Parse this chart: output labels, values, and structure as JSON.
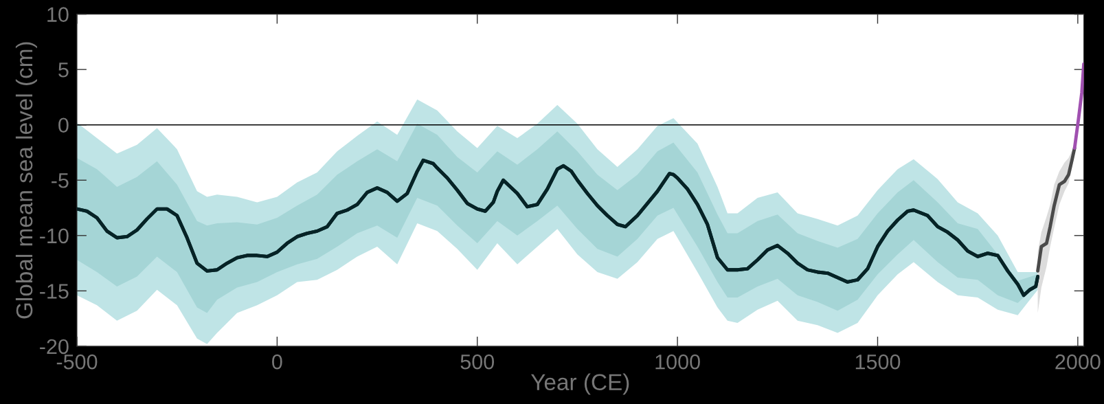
{
  "chart_data": {
    "type": "line",
    "xlabel": "Year (CE)",
    "ylabel": "Global mean sea level (cm)",
    "xlim": [
      -500,
      2015
    ],
    "ylim": [
      -20,
      10
    ],
    "xticks": [
      -500,
      0,
      500,
      1000,
      1500,
      2000
    ],
    "yticks": [
      -20,
      -15,
      -10,
      -5,
      0,
      5,
      10
    ],
    "grid": false,
    "legend": false,
    "ref_lines": [
      {
        "axis": "y",
        "value": 0,
        "color": "#000000",
        "line_style": "solid"
      }
    ],
    "series": [
      {
        "type": "line",
        "color": "#062326",
        "x": [
          -500,
          -475,
          -450,
          -425,
          -400,
          -375,
          -350,
          -325,
          -300,
          -275,
          -250,
          -225,
          -200,
          -175,
          -150,
          -125,
          -100,
          -75,
          -50,
          -25,
          0,
          25,
          50,
          75,
          100,
          125,
          150,
          175,
          200,
          225,
          250,
          275,
          300,
          325,
          350,
          365,
          390,
          400,
          425,
          450,
          475,
          500,
          520,
          540,
          550,
          565,
          600,
          625,
          650,
          675,
          700,
          715,
          735,
          750,
          775,
          800,
          825,
          850,
          870,
          900,
          950,
          980,
          990,
          1000,
          1025,
          1050,
          1075,
          1100,
          1125,
          1150,
          1175,
          1200,
          1225,
          1250,
          1275,
          1300,
          1325,
          1350,
          1375,
          1400,
          1425,
          1450,
          1475,
          1500,
          1525,
          1550,
          1575,
          1590,
          1625,
          1650,
          1675,
          1700,
          1725,
          1750,
          1775,
          1800,
          1825,
          1850,
          1865,
          1880,
          1895,
          1900
        ],
        "values": [
          -7.6,
          -7.8,
          -8.4,
          -9.6,
          -10.2,
          -10.1,
          -9.5,
          -8.5,
          -7.6,
          -7.6,
          -8.2,
          -10.2,
          -12.5,
          -13.2,
          -13.1,
          -12.5,
          -12.0,
          -11.8,
          -11.8,
          -11.9,
          -11.5,
          -10.7,
          -10.1,
          -9.8,
          -9.6,
          -9.2,
          -8.0,
          -7.7,
          -7.2,
          -6.1,
          -5.7,
          -6.1,
          -6.9,
          -6.2,
          -4.2,
          -3.2,
          -3.5,
          -3.9,
          -4.8,
          -5.9,
          -7.1,
          -7.6,
          -7.8,
          -7.0,
          -6.0,
          -5.0,
          -6.2,
          -7.4,
          -7.2,
          -5.8,
          -4.0,
          -3.7,
          -4.2,
          -5.0,
          -6.2,
          -7.3,
          -8.2,
          -9.0,
          -9.2,
          -8.2,
          -6.0,
          -4.4,
          -4.5,
          -4.8,
          -5.8,
          -7.2,
          -9.0,
          -12.0,
          -13.1,
          -13.1,
          -13.0,
          -12.2,
          -11.3,
          -10.9,
          -11.6,
          -12.5,
          -13.1,
          -13.3,
          -13.4,
          -13.8,
          -14.2,
          -14.0,
          -13.0,
          -11.0,
          -9.6,
          -8.6,
          -7.8,
          -7.7,
          -8.2,
          -9.2,
          -9.7,
          -10.4,
          -11.4,
          -11.9,
          -11.6,
          -11.8,
          -13.2,
          -14.4,
          -15.4,
          -14.9,
          -14.6,
          -13.7
        ],
        "upper": [
          0.2,
          null,
          -1.2,
          null,
          -2.6,
          null,
          -1.8,
          null,
          -0.3,
          null,
          -2.2,
          null,
          -6.0,
          -6.5,
          -6.3,
          null,
          -6.5,
          null,
          -7.0,
          null,
          -6.5,
          null,
          -5.2,
          null,
          -4.3,
          null,
          -2.4,
          null,
          -1.0,
          null,
          0.3,
          null,
          -0.9,
          null,
          2.3,
          null,
          null,
          1.3,
          null,
          -0.6,
          null,
          -2.1,
          null,
          null,
          -0.1,
          null,
          -1.2,
          null,
          0.1,
          null,
          1.8,
          null,
          null,
          0.1,
          null,
          -2.2,
          null,
          -3.8,
          null,
          -2.2,
          -0.1,
          null,
          0.6,
          null,
          null,
          -1.7,
          null,
          -5.6,
          -8.0,
          -8.0,
          null,
          -6.6,
          null,
          -6.1,
          null,
          -8.0,
          null,
          -8.5,
          null,
          -9.1,
          null,
          -8.2,
          null,
          -5.9,
          null,
          -4.0,
          null,
          -3.1,
          null,
          -4.9,
          null,
          -7.0,
          null,
          -8.0,
          null,
          -10.0,
          null,
          -13.3,
          null,
          null,
          null,
          -13.3
        ],
        "lower": [
          -15.4,
          null,
          -16.3,
          null,
          -17.7,
          null,
          -16.8,
          null,
          -14.9,
          null,
          -16.3,
          null,
          -19.3,
          -19.8,
          -18.8,
          null,
          -17.0,
          null,
          -16.3,
          null,
          -15.4,
          null,
          -14.2,
          null,
          -14.0,
          null,
          -13.1,
          null,
          -11.9,
          null,
          -11.0,
          null,
          -12.6,
          null,
          -8.9,
          null,
          null,
          -9.6,
          null,
          -11.2,
          null,
          -13.1,
          null,
          null,
          -10.7,
          null,
          -12.6,
          null,
          -11.0,
          null,
          -9.4,
          null,
          null,
          -11.7,
          null,
          -13.3,
          null,
          -13.9,
          null,
          -12.4,
          -10.3,
          null,
          -9.6,
          null,
          null,
          -13.3,
          null,
          -16.5,
          -17.7,
          -17.9,
          null,
          -16.7,
          null,
          -15.9,
          null,
          -17.7,
          null,
          -18.1,
          null,
          -18.8,
          null,
          -17.9,
          null,
          -15.4,
          null,
          -13.5,
          null,
          -12.4,
          null,
          -14.2,
          null,
          -15.4,
          null,
          -15.6,
          null,
          -16.7,
          null,
          -17.2,
          null,
          null,
          null,
          -14.9
        ]
      },
      {
        "type": "line",
        "color": "#062326",
        "x": [
          -500,
          -475,
          -450,
          -425,
          -400,
          -375,
          -350,
          -325,
          -300,
          -275,
          -250,
          -225,
          -200,
          -175,
          -150,
          -125,
          -100,
          -75,
          -50,
          -25,
          0,
          25,
          50,
          75,
          100,
          125,
          150,
          175,
          200,
          225,
          250,
          275,
          300,
          325,
          350,
          365,
          390,
          400,
          425,
          450,
          475,
          500,
          520,
          540,
          550,
          565,
          600,
          625,
          650,
          675,
          700,
          715,
          735,
          750,
          775,
          800,
          825,
          850,
          870,
          900,
          950,
          980,
          990,
          1000,
          1025,
          1050,
          1075,
          1100,
          1125,
          1150,
          1175,
          1200,
          1225,
          1250,
          1275,
          1300,
          1325,
          1350,
          1375,
          1400,
          1425,
          1450,
          1475,
          1500,
          1525,
          1550,
          1575,
          1590,
          1625,
          1650,
          1675,
          1700,
          1725,
          1750,
          1775,
          1800,
          1825,
          1850,
          1865,
          1880,
          1895,
          1900
        ],
        "values": [
          -7.6,
          -7.8,
          -8.4,
          -9.6,
          -10.2,
          -10.1,
          -9.5,
          -8.5,
          -7.6,
          -7.6,
          -8.2,
          -10.2,
          -12.5,
          -13.2,
          -13.1,
          -12.5,
          -12.0,
          -11.8,
          -11.8,
          -11.9,
          -11.5,
          -10.7,
          -10.1,
          -9.8,
          -9.6,
          -9.2,
          -8.0,
          -7.7,
          -7.2,
          -6.1,
          -5.7,
          -6.1,
          -6.9,
          -6.2,
          -4.2,
          -3.2,
          -3.5,
          -3.9,
          -4.8,
          -5.9,
          -7.1,
          -7.6,
          -7.8,
          -7.0,
          -6.0,
          -5.0,
          -6.2,
          -7.4,
          -7.2,
          -5.8,
          -4.0,
          -3.7,
          -4.2,
          -5.0,
          -6.2,
          -7.3,
          -8.2,
          -9.0,
          -9.2,
          -8.2,
          -6.0,
          -4.4,
          -4.5,
          -4.8,
          -5.8,
          -7.2,
          -9.0,
          -12.0,
          -13.1,
          -13.1,
          -13.0,
          -12.2,
          -11.3,
          -10.9,
          -11.6,
          -12.5,
          -13.1,
          -13.3,
          -13.4,
          -13.8,
          -14.2,
          -14.0,
          -13.0,
          -11.0,
          -9.6,
          -8.6,
          -7.8,
          -7.7,
          -8.2,
          -9.2,
          -9.7,
          -10.4,
          -11.4,
          -11.9,
          -11.6,
          -11.8,
          -13.2,
          -14.4,
          -15.4,
          -14.9,
          -14.6,
          -13.7
        ],
        "upper": [
          -3.0,
          null,
          -4.0,
          null,
          -5.6,
          null,
          -4.7,
          null,
          -3.3,
          null,
          -5.4,
          null,
          -8.7,
          -9.1,
          -8.9,
          null,
          -8.8,
          null,
          -9.0,
          null,
          -8.4,
          null,
          -7.3,
          null,
          -6.3,
          null,
          -4.5,
          null,
          -3.3,
          null,
          -2.2,
          null,
          -3.3,
          null,
          0.1,
          null,
          null,
          -0.9,
          null,
          -2.9,
          null,
          -4.3,
          null,
          null,
          -2.4,
          null,
          -3.6,
          null,
          -2.2,
          null,
          -0.6,
          null,
          null,
          -2.4,
          null,
          -4.5,
          null,
          -5.9,
          null,
          -4.5,
          -2.4,
          null,
          -1.6,
          null,
          null,
          -4.3,
          null,
          -8.1,
          -9.8,
          -9.8,
          null,
          -8.7,
          null,
          -8.1,
          null,
          -9.8,
          null,
          -10.5,
          null,
          -11.1,
          null,
          -10.3,
          null,
          -8.0,
          null,
          -6.1,
          null,
          -5.0,
          null,
          -7.0,
          null,
          -8.9,
          null,
          -9.4,
          null,
          -11.7,
          null,
          -14.1,
          null,
          null,
          null,
          -13.5
        ],
        "lower": [
          -12.2,
          null,
          -13.3,
          null,
          -14.6,
          null,
          -13.7,
          null,
          -11.9,
          null,
          -13.3,
          null,
          -16.5,
          -17.0,
          -15.8,
          null,
          -14.7,
          null,
          -14.2,
          null,
          -13.3,
          null,
          -12.6,
          null,
          -12.1,
          null,
          -11.0,
          null,
          -9.8,
          null,
          -9.1,
          null,
          -10.2,
          null,
          -6.6,
          null,
          null,
          -7.3,
          null,
          -9.1,
          null,
          -10.7,
          null,
          null,
          -8.7,
          null,
          -10.0,
          null,
          -8.7,
          null,
          -7.3,
          null,
          null,
          -9.4,
          null,
          -11.2,
          null,
          -11.9,
          null,
          -10.3,
          -8.2,
          null,
          -7.5,
          null,
          null,
          -11.0,
          null,
          -14.2,
          -15.6,
          -15.6,
          null,
          -14.6,
          null,
          -13.9,
          null,
          -15.4,
          null,
          -16.0,
          null,
          -16.8,
          null,
          -15.8,
          null,
          -13.5,
          null,
          -11.7,
          null,
          -10.4,
          null,
          -12.4,
          null,
          -13.8,
          null,
          -14.0,
          null,
          -15.4,
          null,
          -16.1,
          null,
          null,
          null,
          -14.4
        ]
      },
      {
        "type": "line",
        "color": "#4a4a4a",
        "x": [
          1900,
          1909,
          1922,
          1931,
          1941,
          1954,
          1967,
          1977,
          1986,
          1992
        ],
        "values": [
          -13.2,
          -11.0,
          -10.7,
          -9.2,
          -7.3,
          -5.4,
          -5.1,
          -4.5,
          -3.1,
          -2.1
        ],
        "upper": [
          -11.5,
          -9.7,
          -8.3,
          -7.2,
          -5.4,
          -4.2,
          -3.4,
          -3.0,
          -2.3,
          -1.8
        ],
        "lower": [
          -17.0,
          -14.7,
          -12.8,
          -11.0,
          -9.3,
          -7.2,
          -6.0,
          -5.3,
          -3.8,
          -2.5
        ]
      },
      {
        "type": "line",
        "color": "#a050b0",
        "x": [
          1992,
          2002,
          2010,
          2015
        ],
        "values": [
          -2.1,
          0.6,
          2.9,
          5.5
        ]
      }
    ]
  }
}
